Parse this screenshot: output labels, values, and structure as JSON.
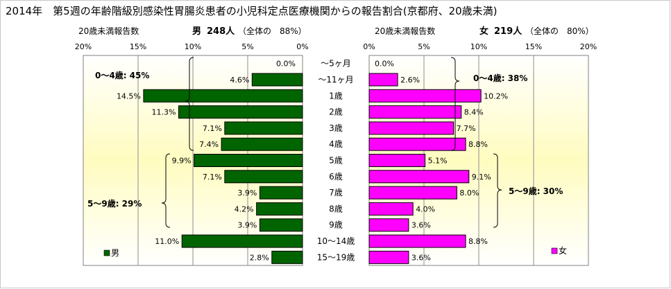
{
  "chart_data": {
    "type": "bar",
    "title": "2014年　第5週の年齢階級別感染性胃腸炎患者の小児科定点医療機関からの報告割合(京都府、20歳未満)",
    "categories": [
      "～5ヶ月",
      "～11ヶ月",
      "1歳",
      "2歳",
      "3歳",
      "4歳",
      "5歳",
      "6歳",
      "7歳",
      "8歳",
      "9歳",
      "10～14歳",
      "15～19歳"
    ],
    "axis_ticks": [
      "20%",
      "15%",
      "10%",
      "5%",
      "0%"
    ],
    "axis_max": 20,
    "colors": {
      "male": "#006400",
      "female": "#ff00ff"
    },
    "male": {
      "header_prefix": "20歳未満報告数",
      "header_name": "男",
      "header_count": "248人",
      "header_share": "（全体の　88%）",
      "legend": "男",
      "values": [
        0.0,
        4.6,
        14.5,
        11.3,
        7.1,
        7.4,
        9.9,
        7.1,
        3.9,
        4.2,
        3.9,
        11.0,
        2.8
      ],
      "labels": [
        "0.0%",
        "4.6%",
        "14.5%",
        "11.3%",
        "7.1%",
        "7.4%",
        "9.9%",
        "7.1%",
        "3.9%",
        "4.2%",
        "3.9%",
        "11.0%",
        "2.8%"
      ],
      "group_0_4": "0～4歳: 45%",
      "group_5_9": "5～9歳: 29%"
    },
    "female": {
      "header_prefix": "20歳未満報告数",
      "header_name": "女",
      "header_count": "219人",
      "header_share": "（全体の　80%）",
      "legend": "女",
      "values": [
        0.0,
        2.6,
        10.2,
        8.4,
        7.7,
        8.8,
        5.1,
        9.1,
        8.0,
        4.0,
        3.6,
        8.8,
        3.6
      ],
      "labels": [
        "0.0%",
        "2.6%",
        "10.2%",
        "8.4%",
        "7.7%",
        "8.8%",
        "5.1%",
        "9.1%",
        "8.0%",
        "4.0%",
        "3.6%",
        "8.8%",
        "3.6%"
      ],
      "group_0_4": "0～4歳: 38%",
      "group_5_9": "5～9歳: 30%"
    }
  }
}
